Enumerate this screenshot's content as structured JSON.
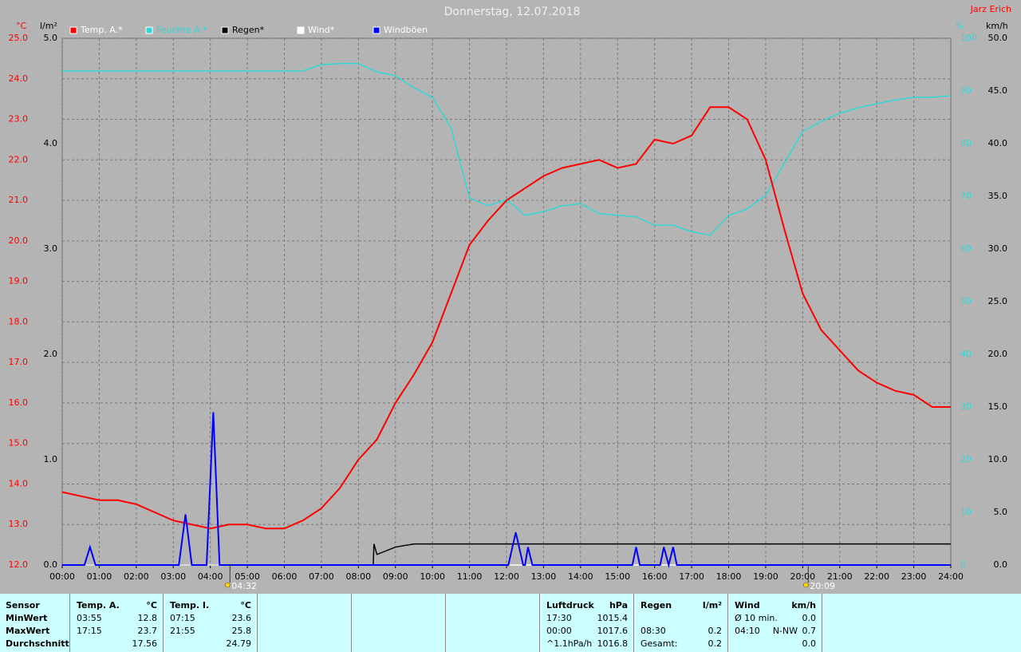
{
  "chart_data": {
    "type": "line",
    "title": "Donnerstag, 12.07.2018",
    "author": "Jarz Erich",
    "ylabel": "°C",
    "y2label": "l/m²",
    "y3label": "%",
    "y4label": "km/h",
    "xlim": [
      0,
      24
    ],
    "xticks": [
      {
        "value": 0,
        "label": "00:00"
      },
      {
        "value": 1,
        "label": "01:00"
      },
      {
        "value": 2,
        "label": "02:00"
      },
      {
        "value": 3,
        "label": "03:00"
      },
      {
        "value": 4,
        "label": "04:00"
      },
      {
        "value": 5,
        "label": "05:00"
      },
      {
        "value": 6,
        "label": "06:00"
      },
      {
        "value": 7,
        "label": "07:00"
      },
      {
        "value": 8,
        "label": "08:00"
      },
      {
        "value": 9,
        "label": "09:00"
      },
      {
        "value": 10,
        "label": "10:00"
      },
      {
        "value": 11,
        "label": "11:00"
      },
      {
        "value": 12,
        "label": "12:00"
      },
      {
        "value": 13,
        "label": "13:00"
      },
      {
        "value": 14,
        "label": "14:00"
      },
      {
        "value": 15,
        "label": "15:00"
      },
      {
        "value": 16,
        "label": "16:00"
      },
      {
        "value": 17,
        "label": "17:00"
      },
      {
        "value": 18,
        "label": "18:00"
      },
      {
        "value": 19,
        "label": "19:00"
      },
      {
        "value": 20,
        "label": "20:00"
      },
      {
        "value": 21,
        "label": "21:00"
      },
      {
        "value": 22,
        "label": "22:00"
      },
      {
        "value": 23,
        "label": "23:00"
      },
      {
        "value": 24,
        "label": "24:00"
      }
    ],
    "ylim": [
      12,
      25
    ],
    "yticks": [
      {
        "value": 12,
        "label": "12.0"
      },
      {
        "value": 13,
        "label": "13.0"
      },
      {
        "value": 14,
        "label": "14.0"
      },
      {
        "value": 15,
        "label": "15.0"
      },
      {
        "value": 16,
        "label": "16.0"
      },
      {
        "value": 17,
        "label": "17.0"
      },
      {
        "value": 18,
        "label": "18.0"
      },
      {
        "value": 19,
        "label": "19.0"
      },
      {
        "value": 20,
        "label": "20.0"
      },
      {
        "value": 21,
        "label": "21.0"
      },
      {
        "value": 22,
        "label": "22.0"
      },
      {
        "value": 23,
        "label": "23.0"
      },
      {
        "value": 24,
        "label": "24.0"
      },
      {
        "value": 25,
        "label": "25.0"
      }
    ],
    "y2lim": [
      0,
      5
    ],
    "y2ticks": [
      {
        "value": 0,
        "label": "0.0"
      },
      {
        "value": 1,
        "label": "1.0"
      },
      {
        "value": 2,
        "label": "2.0"
      },
      {
        "value": 3,
        "label": "3.0"
      },
      {
        "value": 4,
        "label": "4.0"
      },
      {
        "value": 5,
        "label": "5.0"
      }
    ],
    "y3lim": [
      0,
      100
    ],
    "y3ticks": [
      0,
      10,
      20,
      30,
      40,
      50,
      60,
      70,
      80,
      90,
      100
    ],
    "y4lim": [
      0,
      50
    ],
    "y4ticks": [
      {
        "value": 0,
        "label": "0.0"
      },
      {
        "value": 5,
        "label": "5.0"
      },
      {
        "value": 10,
        "label": "10.0"
      },
      {
        "value": 15,
        "label": "15.0"
      },
      {
        "value": 20,
        "label": "20.0"
      },
      {
        "value": 25,
        "label": "25.0"
      },
      {
        "value": 30,
        "label": "30.0"
      },
      {
        "value": 35,
        "label": "35.0"
      },
      {
        "value": 40,
        "label": "40.0"
      },
      {
        "value": 45,
        "label": "45.0"
      },
      {
        "value": 50,
        "label": "50.0"
      }
    ],
    "grid": true,
    "series": [
      {
        "name": "Temp. A.*",
        "color": "#ff0000",
        "axis": "y",
        "x": [
          0,
          0.5,
          1,
          1.5,
          2,
          2.5,
          3,
          3.5,
          4,
          4.5,
          5,
          5.5,
          6,
          6.5,
          7,
          7.5,
          8,
          8.5,
          9,
          9.5,
          10,
          10.5,
          11,
          11.5,
          12,
          12.5,
          13,
          13.5,
          14,
          14.5,
          15,
          15.5,
          16,
          16.5,
          17,
          17.5,
          18,
          18.5,
          19,
          19.5,
          20,
          20.5,
          21,
          21.5,
          22,
          22.5,
          23,
          23.5,
          24
        ],
        "values": [
          13.8,
          13.7,
          13.6,
          13.6,
          13.5,
          13.3,
          13.1,
          13.0,
          12.9,
          13.0,
          13.0,
          12.9,
          12.9,
          13.1,
          13.4,
          13.9,
          14.6,
          15.1,
          16.0,
          16.7,
          17.5,
          18.7,
          19.9,
          20.5,
          21.0,
          21.3,
          21.6,
          21.8,
          21.9,
          22.0,
          21.8,
          21.9,
          22.5,
          22.4,
          22.6,
          23.3,
          23.3,
          23.0,
          22.0,
          20.3,
          18.7,
          17.8,
          17.3,
          16.8,
          16.5,
          16.3,
          16.2,
          15.9,
          15.9
        ]
      },
      {
        "name": "Feuchte A.*",
        "color": "#33d6d6",
        "axis": "y3",
        "x": [
          0,
          1,
          2,
          3,
          4,
          5,
          6,
          6.5,
          7,
          7.5,
          8,
          8.5,
          9,
          9.5,
          10,
          10.5,
          11,
          11.5,
          12,
          12.5,
          13,
          13.5,
          14,
          14.5,
          15,
          15.5,
          16,
          16.5,
          17,
          17.5,
          18,
          18.5,
          19,
          19.5,
          20,
          20.5,
          21,
          21.5,
          22,
          22.5,
          23,
          23.5,
          24
        ],
        "values": [
          93.8,
          93.8,
          93.8,
          93.8,
          93.8,
          93.8,
          93.8,
          93.8,
          95.0,
          95.2,
          95.2,
          93.6,
          92.9,
          90.6,
          88.8,
          83.0,
          69.7,
          68.2,
          69.4,
          66.4,
          67.1,
          68.2,
          68.6,
          66.7,
          66.4,
          66.1,
          64.5,
          64.5,
          63.3,
          62.6,
          66.4,
          67.6,
          70.2,
          76.2,
          82.3,
          84.2,
          85.8,
          86.8,
          87.6,
          88.3,
          88.8,
          88.8,
          89.1
        ]
      },
      {
        "name": "Regen*",
        "color": "#000000",
        "axis": "y2",
        "x": [
          0,
          8.4,
          8.42,
          8.5,
          9,
          9.5,
          24
        ],
        "values": [
          0,
          0,
          0.2,
          0.1,
          0.17,
          0.2,
          0.2
        ]
      },
      {
        "name": "Wind*",
        "color": "#ffffff",
        "axis": "y4",
        "x": [
          0,
          24
        ],
        "values": [
          0,
          0
        ]
      },
      {
        "name": "Windböen",
        "color": "#0000ff",
        "axis": "y4",
        "x": [
          0,
          0.6,
          0.75,
          0.9,
          3.15,
          3.33,
          3.5,
          3.9,
          4.08,
          4.25,
          12.05,
          12.25,
          12.45,
          12.5,
          12.58,
          12.7,
          15.4,
          15.5,
          15.6,
          16.15,
          16.25,
          16.38,
          16.5,
          16.6,
          24
        ],
        "values": [
          0,
          0,
          1.7,
          0,
          0,
          4.8,
          0,
          0,
          14.5,
          0,
          0,
          3.1,
          0,
          0,
          1.7,
          0,
          0,
          1.7,
          0,
          0,
          1.7,
          0,
          1.7,
          0,
          0
        ]
      }
    ],
    "annotations": [
      {
        "x": 4.53,
        "text": "04:32"
      },
      {
        "x": 20.15,
        "text": "20:09"
      }
    ]
  },
  "stats": [
    {
      "header": [
        "Sensor"
      ],
      "rows": [
        [
          "MinWert"
        ],
        [
          "MaxWert"
        ],
        [
          "Durchschnitt"
        ]
      ]
    },
    {
      "header": [
        "Temp. A.",
        "°C"
      ],
      "rows": [
        [
          "03:55",
          "12.8"
        ],
        [
          "17:15",
          "23.7"
        ],
        [
          "17.56"
        ]
      ]
    },
    {
      "header": [
        "Temp. I.",
        "°C"
      ],
      "rows": [
        [
          "07:15",
          "23.6"
        ],
        [
          "21:55",
          "25.8"
        ],
        [
          "24.79"
        ]
      ]
    },
    {
      "header": [],
      "rows": []
    },
    {
      "header": [],
      "rows": []
    },
    {
      "header": [],
      "rows": []
    },
    {
      "header": [
        "Luftdruck",
        "hPa"
      ],
      "rows": [
        [
          "17:30",
          "1015.4"
        ],
        [
          "00:00",
          "1017.6"
        ],
        [
          "^1.1hPa/h",
          "1016.8"
        ]
      ]
    },
    {
      "header": [
        "Regen",
        "l/m²"
      ],
      "rows": [
        [],
        [
          "08:30",
          "0.2"
        ],
        [
          "Gesamt:",
          "0.2"
        ]
      ]
    },
    {
      "header": [
        "Wind",
        "km/h"
      ],
      "rows": [
        [
          "Ø 10 min.",
          "0.0"
        ],
        [
          "04:10",
          "N-NW",
          "0.7"
        ],
        [
          "0.0"
        ]
      ]
    }
  ]
}
